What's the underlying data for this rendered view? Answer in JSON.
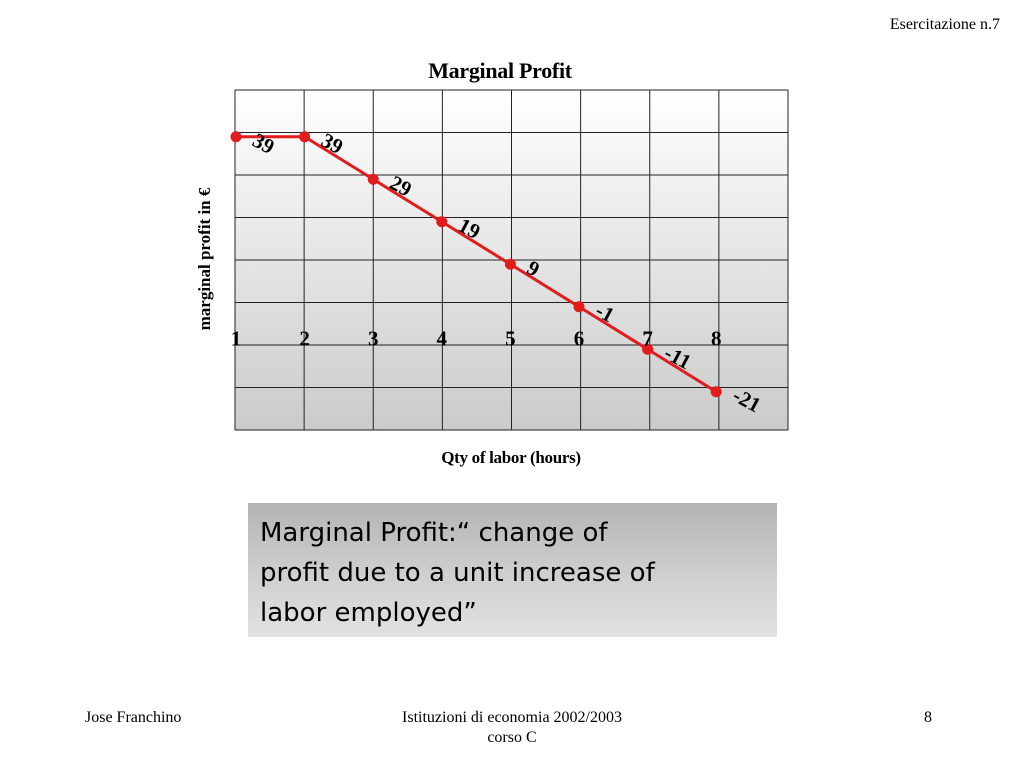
{
  "header": {
    "slide_label": "Esercitazione n.7"
  },
  "chart_data": {
    "type": "line",
    "title": "Marginal Profit",
    "xlabel": "Qty of labor (hours)",
    "ylabel": "marginal profit in €",
    "x": [
      1,
      2,
      3,
      4,
      5,
      6,
      7,
      8
    ],
    "values": [
      39,
      39,
      29,
      19,
      9,
      -1,
      -11,
      -21
    ],
    "data_labels": [
      "39",
      "39",
      "29",
      "19",
      "9",
      "-1",
      "-11",
      "-21"
    ],
    "ylim": [
      -30,
      50
    ],
    "ytick_step": 10,
    "grid": true,
    "legend": "none",
    "colors": {
      "line": "#e21b1b",
      "grid": "#222222",
      "plot_top": "#ffffff",
      "plot_bottom": "#cbcbcb"
    }
  },
  "definition": {
    "lines": [
      "Marginal Profit:“ change of",
      "profit due to a unit increase of",
      "labor employed”"
    ]
  },
  "footer": {
    "author": "Jose Franchino",
    "course_line1": "Istituzioni di economia 2002/2003",
    "course_line2": "corso C",
    "page_number": "8"
  }
}
